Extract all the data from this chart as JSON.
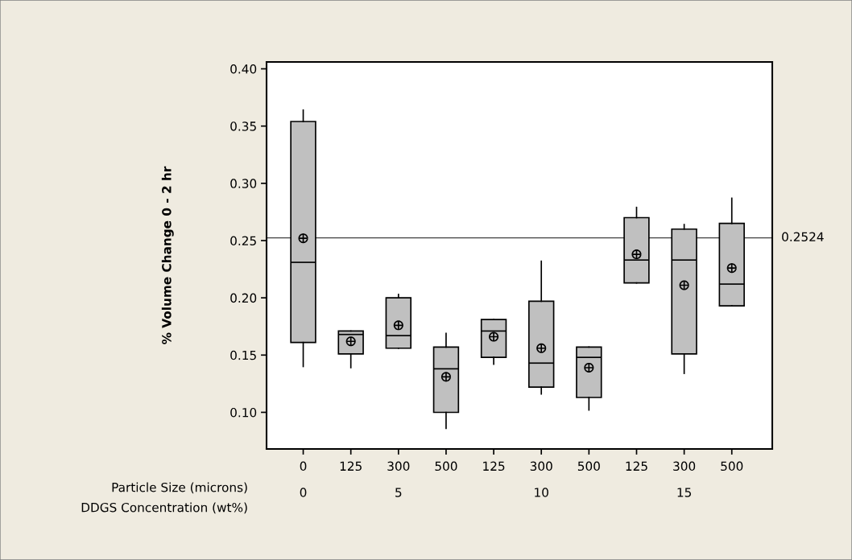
{
  "chart_data": {
    "type": "box",
    "ylabel": "% Volume Change 0 - 2 hr",
    "categories": [
      "0",
      "125",
      "300",
      "500",
      "125",
      "300",
      "500",
      "125",
      "300",
      "500"
    ],
    "boxes": [
      {
        "low": 0.14,
        "q1": 0.161,
        "median": 0.231,
        "q3": 0.354,
        "high": 0.364,
        "mean": 0.252
      },
      {
        "low": 0.139,
        "q1": 0.151,
        "median": 0.168,
        "q3": 0.171,
        "high": 0.171,
        "mean": 0.162
      },
      {
        "low": 0.156,
        "q1": 0.156,
        "median": 0.167,
        "q3": 0.2,
        "high": 0.203,
        "mean": 0.176
      },
      {
        "low": 0.086,
        "q1": 0.1,
        "median": 0.138,
        "q3": 0.157,
        "high": 0.169,
        "mean": 0.131
      },
      {
        "low": 0.142,
        "q1": 0.148,
        "median": 0.171,
        "q3": 0.181,
        "high": 0.181,
        "mean": 0.166
      },
      {
        "low": 0.116,
        "q1": 0.122,
        "median": 0.143,
        "q3": 0.197,
        "high": 0.232,
        "mean": 0.156
      },
      {
        "low": 0.102,
        "q1": 0.113,
        "median": 0.148,
        "q3": 0.157,
        "high": 0.157,
        "mean": 0.139
      },
      {
        "low": 0.213,
        "q1": 0.213,
        "median": 0.233,
        "q3": 0.27,
        "high": 0.279,
        "mean": 0.238
      },
      {
        "low": 0.134,
        "q1": 0.151,
        "median": 0.233,
        "q3": 0.26,
        "high": 0.264,
        "mean": 0.211
      },
      {
        "low": 0.193,
        "q1": 0.193,
        "median": 0.212,
        "q3": 0.265,
        "high": 0.287,
        "mean": 0.226
      }
    ],
    "color": "#c0c0c0",
    "ylim": [
      0.068,
      0.406
    ],
    "yticks": [
      {
        "value": 0.1,
        "label": "0.10"
      },
      {
        "value": 0.15,
        "label": "0.15"
      },
      {
        "value": 0.2,
        "label": "0.20"
      },
      {
        "value": 0.25,
        "label": "0.25"
      },
      {
        "value": 0.3,
        "label": "0.30"
      },
      {
        "value": 0.35,
        "label": "0.35"
      },
      {
        "value": 0.4,
        "label": "0.40"
      }
    ],
    "ref_lines": [
      {
        "axis": "y",
        "value": 0.2524,
        "label": "0.2524",
        "color": "#404040"
      }
    ],
    "annotations": [
      "Particle Size (microns)",
      "DDGS Concentration (wt%)",
      "0",
      "5",
      "10",
      "15"
    ],
    "grid": false
  }
}
